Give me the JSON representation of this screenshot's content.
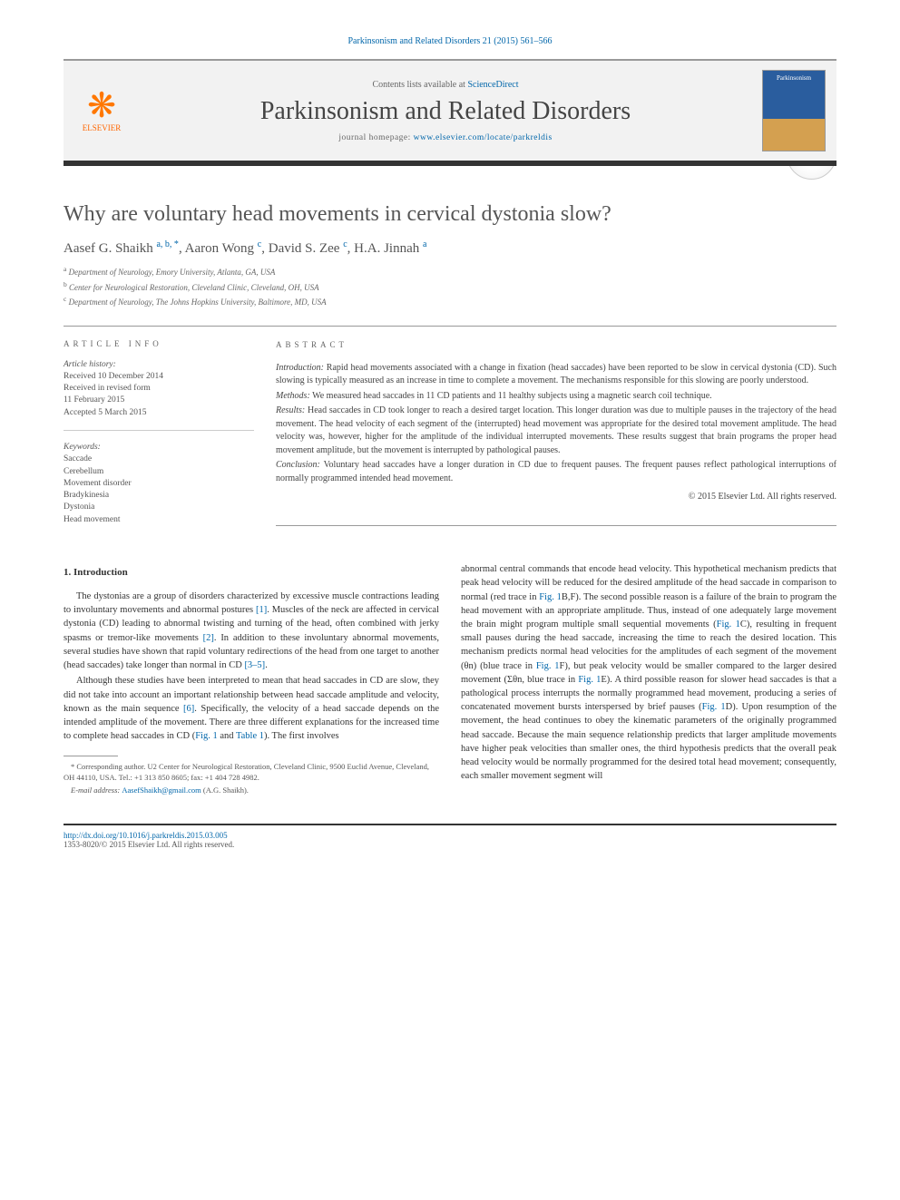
{
  "header": {
    "citation": "Parkinsonism and Related Disorders 21 (2015) 561–566",
    "contents_prefix": "Contents lists available at ",
    "contents_link": "ScienceDirect",
    "journal_name": "Parkinsonism and Related Disorders",
    "homepage_prefix": "journal homepage: ",
    "homepage_url": "www.elsevier.com/locate/parkreldis",
    "publisher_logo": "ELSEVIER",
    "cover_text": "Parkinsonism"
  },
  "article": {
    "title": "Why are voluntary head movements in cervical dystonia slow?",
    "crossmark": "CrossMark",
    "authors_html": "Aasef G. Shaikh <sup>a, b, *</sup>, Aaron Wong <sup>c</sup>, David S. Zee <sup>c</sup>, H.A. Jinnah <sup>a</sup>",
    "affiliations": {
      "a": "Department of Neurology, Emory University, Atlanta, GA, USA",
      "b": "Center for Neurological Restoration, Cleveland Clinic, Cleveland, OH, USA",
      "c": "Department of Neurology, The Johns Hopkins University, Baltimore, MD, USA"
    }
  },
  "info": {
    "section_label": "article info",
    "history_label": "Article history:",
    "received": "Received 10 December 2014",
    "revised": "Received in revised form",
    "revised_date": "11 February 2015",
    "accepted": "Accepted 5 March 2015",
    "keywords_label": "Keywords:",
    "keywords": [
      "Saccade",
      "Cerebellum",
      "Movement disorder",
      "Bradykinesia",
      "Dystonia",
      "Head movement"
    ]
  },
  "abstract": {
    "section_label": "abstract",
    "intro_label": "Introduction:",
    "intro": "Rapid head movements associated with a change in fixation (head saccades) have been reported to be slow in cervical dystonia (CD). Such slowing is typically measured as an increase in time to complete a movement. The mechanisms responsible for this slowing are poorly understood.",
    "methods_label": "Methods:",
    "methods": "We measured head saccades in 11 CD patients and 11 healthy subjects using a magnetic search coil technique.",
    "results_label": "Results:",
    "results": "Head saccades in CD took longer to reach a desired target location. This longer duration was due to multiple pauses in the trajectory of the head movement. The head velocity of each segment of the (interrupted) head movement was appropriate for the desired total movement amplitude. The head velocity was, however, higher for the amplitude of the individual interrupted movements. These results suggest that brain programs the proper head movement amplitude, but the movement is interrupted by pathological pauses.",
    "conclusion_label": "Conclusion:",
    "conclusion": "Voluntary head saccades have a longer duration in CD due to frequent pauses. The frequent pauses reflect pathological interruptions of normally programmed intended head movement.",
    "copyright": "© 2015 Elsevier Ltd. All rights reserved."
  },
  "body": {
    "section1_heading": "1. Introduction",
    "p1a": "The dystonias are a group of disorders characterized by excessive muscle contractions leading to involuntary movements and abnormal postures ",
    "p1b": ". Muscles of the neck are affected in cervical dystonia (CD) leading to abnormal twisting and turning of the head, often combined with jerky spasms or tremor-like movements ",
    "p1c": ". In addition to these involuntary abnormal movements, several studies have shown that rapid voluntary redirections of the head from one target to another (head saccades) take longer than normal in CD ",
    "p1d": ".",
    "p2a": "Although these studies have been interpreted to mean that head saccades in CD are slow, they did not take into account an important relationship between head saccade amplitude and velocity, known as the main sequence ",
    "p2b": ". Specifically, the velocity of a head saccade depends on the intended amplitude of the movement. There are three different explanations for the increased time to complete head saccades in CD (",
    "p2c": " and ",
    "p2d": "). The first involves",
    "p3a": "abnormal central commands that encode head velocity. This hypothetical mechanism predicts that peak head velocity will be reduced for the desired amplitude of the head saccade in comparison to normal (red trace in ",
    "p3b": "B,F). The second possible reason is a failure of the brain to program the head movement with an appropriate amplitude. Thus, instead of one adequately large movement the brain might program multiple small sequential movements (",
    "p3c": "C), resulting in frequent small pauses during the head saccade, increasing the time to reach the desired location. This mechanism predicts normal head velocities for the amplitudes of each segment of the movement (θn) (blue trace in ",
    "p3d": "F), but peak velocity would be smaller compared to the larger desired movement (Σθn, blue trace in ",
    "p3e": "E). A third possible reason for slower head saccades is that a pathological process interrupts the normally programmed head movement, producing a series of concatenated movement bursts interspersed by brief pauses (",
    "p3f": "D). Upon resumption of the movement, the head continues to obey the kinematic parameters of the originally programmed head saccade. Because the main sequence relationship predicts that larger amplitude movements have higher peak velocities than smaller ones, the third hypothesis predicts that the overall peak head velocity would be normally programmed for the desired total head movement; consequently, each smaller movement segment will",
    "ref1": "[1]",
    "ref2": "[2]",
    "ref35": "[3–5]",
    "ref6": "[6]",
    "fig1": "Fig. 1",
    "tab1": "Table 1"
  },
  "footnotes": {
    "corresponding": "* Corresponding author. U2 Center for Neurological Restoration, Cleveland Clinic, 9500 Euclid Avenue, Cleveland, OH 44110, USA. Tel.: +1 313 850 8605; fax: +1 404 728 4982.",
    "email_label": "E-mail address: ",
    "email": "AasefShaikh@gmail.com",
    "email_suffix": " (A.G. Shaikh)."
  },
  "footer": {
    "doi": "http://dx.doi.org/10.1016/j.parkreldis.2015.03.005",
    "issn": "1353-8020/© 2015 Elsevier Ltd. All rights reserved."
  },
  "colors": {
    "link": "#0066aa",
    "text": "#333333",
    "muted": "#666666",
    "rule": "#999999",
    "mast_bg": "#f2f2f2",
    "orange": "#ff6600"
  }
}
